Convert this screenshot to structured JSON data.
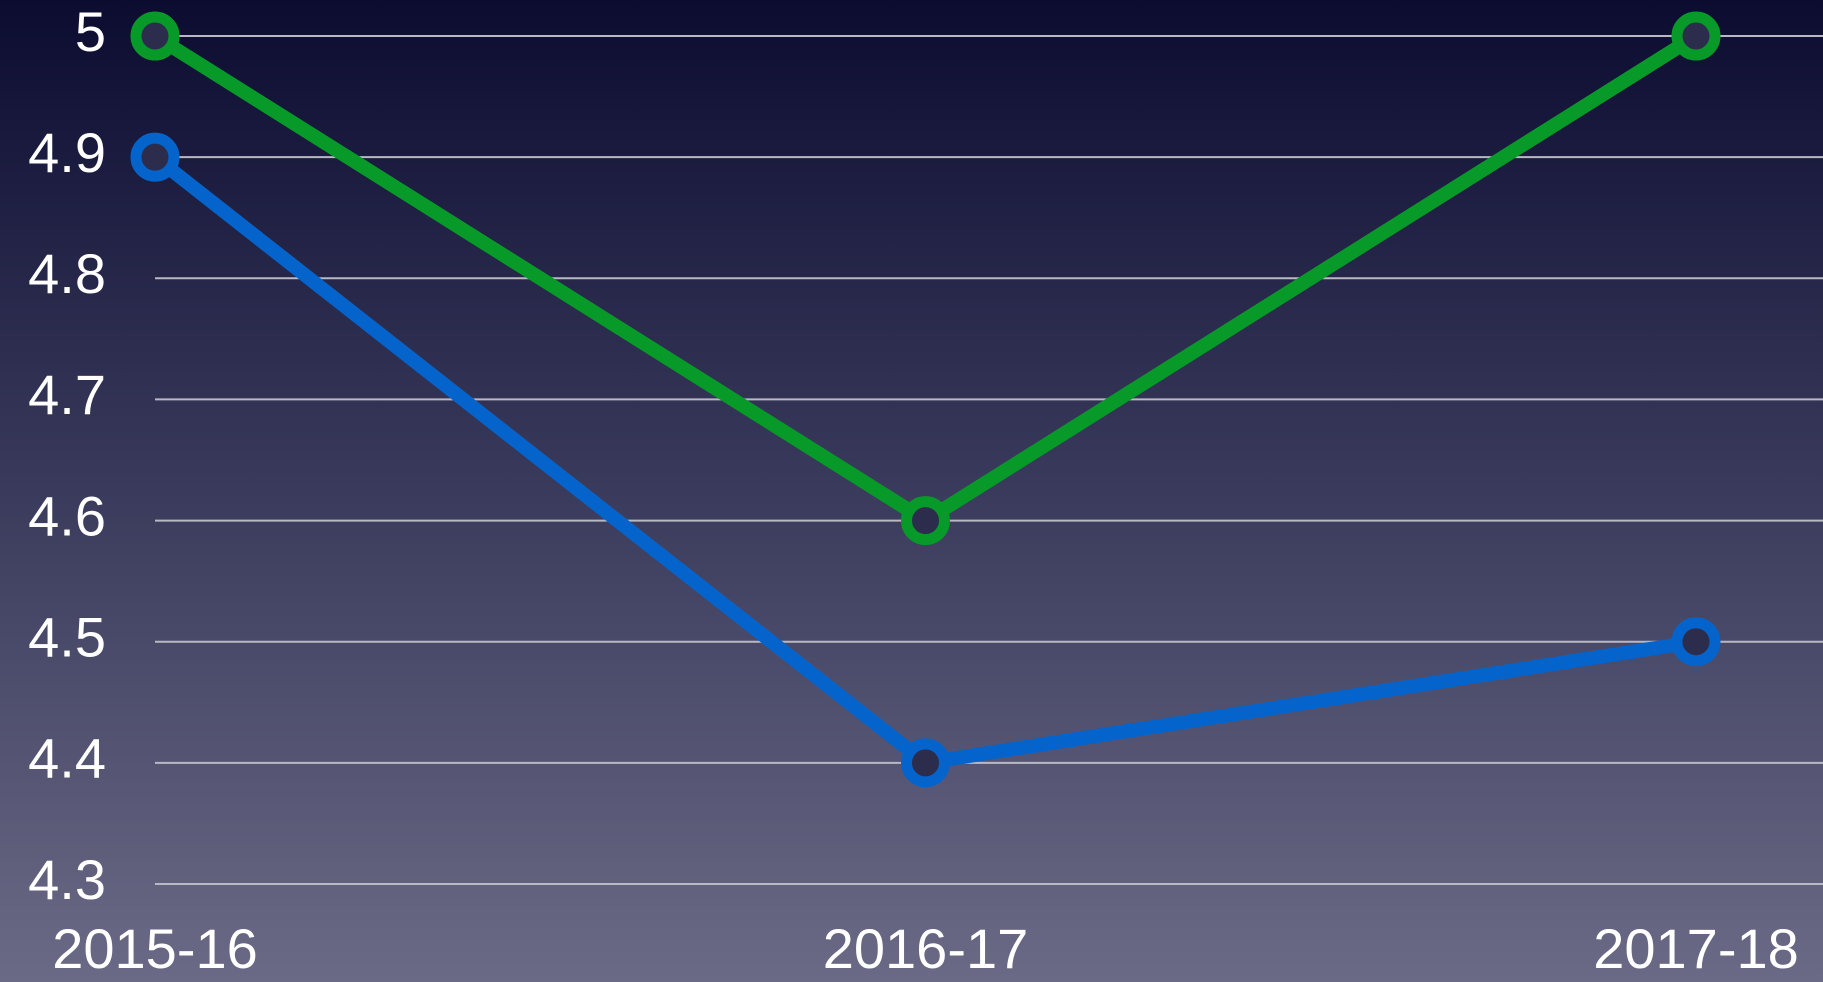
{
  "chart_data": {
    "type": "line",
    "categories": [
      "2015-16",
      "2016-17",
      "2017-18"
    ],
    "series": [
      {
        "color": "#079a28",
        "values": [
          5,
          4.6,
          5
        ]
      },
      {
        "color": "#0564cc",
        "values": [
          4.9,
          4.4,
          4.5
        ]
      }
    ],
    "ylim": [
      4.3,
      5
    ],
    "yticks": [
      4.3,
      4.4,
      4.5,
      4.6,
      4.7,
      4.8,
      4.9,
      5
    ],
    "grid": true
  }
}
